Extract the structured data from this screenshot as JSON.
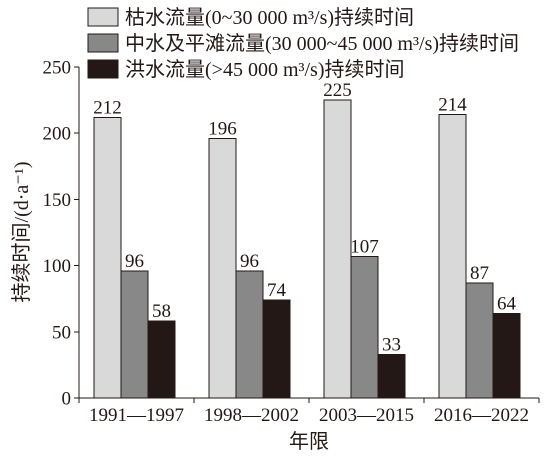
{
  "chart_data": {
    "type": "bar",
    "categories": [
      "1991—1997",
      "1998—2002",
      "2003—2015",
      "2016—2022"
    ],
    "series": [
      {
        "name": "枯水流量(0~30 000 m³/s)持续时间",
        "values": [
          212,
          196,
          225,
          214
        ],
        "color": "#d9d9d9"
      },
      {
        "name": "中水及平滩流量(30 000~45 000 m³/s)持续时间",
        "values": [
          96,
          96,
          107,
          87
        ],
        "color": "#888888"
      },
      {
        "name": "洪水流量(>45 000 m³/s)持续时间",
        "values": [
          58,
          74,
          33,
          64
        ],
        "color": "#231815"
      }
    ],
    "xlabel": "年限",
    "ylabel": "持续时间/(d·a⁻¹)",
    "ylim": [
      0,
      250
    ],
    "yticks": [
      0,
      50,
      100,
      150,
      200,
      250
    ],
    "grid": false,
    "legend": "top-left"
  }
}
